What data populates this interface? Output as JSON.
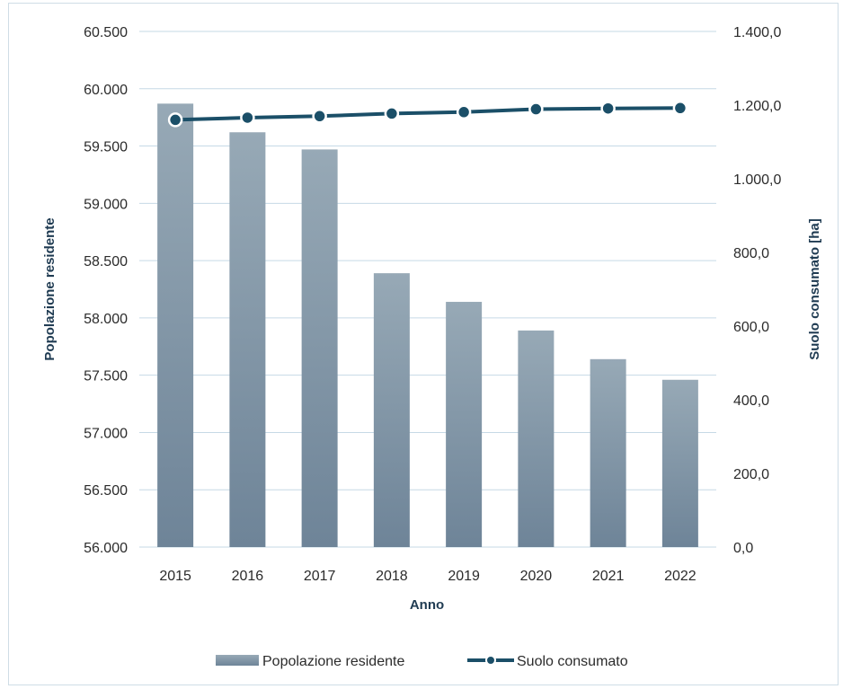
{
  "chart_data": {
    "type": "bar",
    "categories": [
      "2015",
      "2016",
      "2017",
      "2018",
      "2019",
      "2020",
      "2021",
      "2022"
    ],
    "series": [
      {
        "name": "Popolazione residente",
        "type": "bar",
        "axis": "left",
        "values": [
          59870,
          59620,
          59470,
          58390,
          58140,
          57890,
          57640,
          57460
        ]
      },
      {
        "name": "Suolo consumato",
        "type": "line",
        "axis": "right",
        "values": [
          1160,
          1166,
          1170,
          1177,
          1181,
          1189,
          1191,
          1192
        ]
      }
    ],
    "xlabel": "Anno",
    "ylabel": "Popolazione residente",
    "y2label": "Suolo consumato [ha]",
    "ylim": [
      56000,
      60500
    ],
    "y2lim": [
      0,
      1400
    ],
    "yticks": [
      "56.000",
      "56.500",
      "57.000",
      "57.500",
      "58.000",
      "58.500",
      "59.000",
      "59.500",
      "60.000",
      "60.500"
    ],
    "y2ticks": [
      "0,0",
      "200,0",
      "400,0",
      "600,0",
      "800,0",
      "1.000,0",
      "1.200,0",
      "1.400,0"
    ],
    "grid": true,
    "legend": "bottom",
    "colors": {
      "bar_top": "#97a9b6",
      "bar_bottom": "#6e8498",
      "line": "#1b4f68",
      "grid": "#c6d9e6"
    }
  }
}
